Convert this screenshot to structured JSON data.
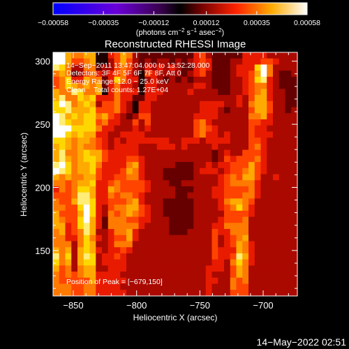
{
  "chart_data": {
    "type": "heatmap",
    "title": "Reconstructed RHESSI Image",
    "xlabel": "Heliocentric X (arcsec)",
    "ylabel": "Heliocentric Y (arcsec)",
    "xlim": [
      -866,
      -673
    ],
    "ylim": [
      114,
      307
    ],
    "x_ticks": [
      -850,
      -800,
      -750,
      -700
    ],
    "y_ticks": [
      150,
      200,
      250,
      300
    ],
    "x_tick_labels": [
      "−850",
      "−800",
      "−750",
      "−700"
    ],
    "y_tick_labels": [
      "150",
      "200",
      "250",
      "300"
    ],
    "colorbar": {
      "range": [
        -0.00058,
        0.00058
      ],
      "tick_values": [
        -0.00058,
        -0.00035,
        -0.00012,
        0.00012,
        0.00035,
        0.00058
      ],
      "tick_labels": [
        "−0.00058",
        "−0.00035",
        "−0.00012",
        "0.00012",
        "0.00035",
        "0.00058"
      ],
      "unit_prefix": "(photons cm",
      "unit_sup1": "−2",
      "unit_mid1": " s",
      "unit_sup2": "−1",
      "unit_mid2": " asec",
      "unit_sup3": "−2",
      "unit_suffix": ")"
    },
    "annotations": {
      "time_range": "14−Sep−2011 13:47:04.000 to 13:52:28.000",
      "detectors": "Detectors: 3F 4F 5F 6F 7F 8F, Att 0",
      "energy": "Energy Range: 12.0 − 25.0 keV",
      "clean": "Clean    Total counts: 1.27E+04",
      "peak": "Position of Peak = [−679,150]"
    },
    "colormap": [
      "#0000ff",
      "#4400cc",
      "#7722aa",
      "#000000",
      "#8b0000",
      "#ff2200",
      "#ff8800",
      "#ffdd00",
      "#ffffff"
    ],
    "peak_position": [
      -679,
      150
    ],
    "intensity_rows_top_to_bottom": [
      "FFCBBCC669ACB87777777779A877777999988888",
      "FFCAABC668ACA87878878789A977788999AA9888",
      "EDB88BB788ABA87989898779A97778999DFB8888",
      "BCB78AB989AB986A98888789A8777899ACFB8778",
      "ABD99CBB79DB99689878787888777889ADE98777",
      "ABDCBCBC79B998699888888998777889ABB98777",
      "CBBEDBBC69B999699988889888877889ABC98877",
      "CEBBDCD999B997799888888888888898ACC98877",
      "DFEBCDC8AAB986998888888899998898BCCA8877",
      "DDECCCDAAAB986998888888899987888ACCA8878",
      "FECDCDDBCA9878AA8888888999988888BBC98888",
      "FEDCCDDAB9988A8A8888888AB9888888AA998888",
      "FFFDDDDB998889898888888ABA988888A9988888",
      "FFDCDCC9988999988888888AB9989888A9998888",
      "DDCBCCBA989899999998899989999888AA988888",
      "CDCBCBBA989999888999898888988888AB988888",
      "CEBBCDCCA9999988888888888878988AAA988888",
      "CECBCDDCA999AA98888888888878A9AAAB988888",
      "EFDBCCDB9999BC988888777889899AAACA988888",
      "FEDBCCDA999ACB988877777899989AABCA988888",
      "CBCBBCCA99AABB98887777788889ABACCA889888",
      "BBABCCD99ABAAAA9888778888889ABBBB9888888",
      "9BABDDC99CBAAAA9888877788899AAAAB9888888",
      "AAABEEC99BABBA98888877888899AAABB9888888",
      "BAACEED99AAABC98887777788889BCCBA8888888",
      "BBAADFD98ABBCCA9887777788889ABDB98888888",
      "CAAACFD98BABCBA9887777788888AAAA98888888",
      "CBAADFC97BBBAA99888777788889AAAB88888888",
      "CC9ADEC97BBBBB98888777788899BBBB88888888",
      "BC9ABEC889BBC9888887778888A99BBB88888888",
      "BB99BDB989AAC9888888888888A89ABC88888888",
      "BBB8BDC889BBB8888888888888A89ACB98888888",
      "CBC8CDC9899A98888888888888A999CB98888888",
      "EBD8CED899A988888888888888A99AEC98888888",
      "DBC8CDD8999988888888888888998BDB98888888",
      "CAB8BCC8899988888888888889998ACB88888888",
      "BABABCC9999888888888888889888ACB88888888",
      "BAAAAAC9999988888888888889988BAB88888888",
      "BBBAABB9999888888888888889888BAA88888888",
      "BBBAABB9999988888888888889888AAA88888888"
    ]
  },
  "footer": {
    "timestamp": "14−May−2022 02:51"
  }
}
